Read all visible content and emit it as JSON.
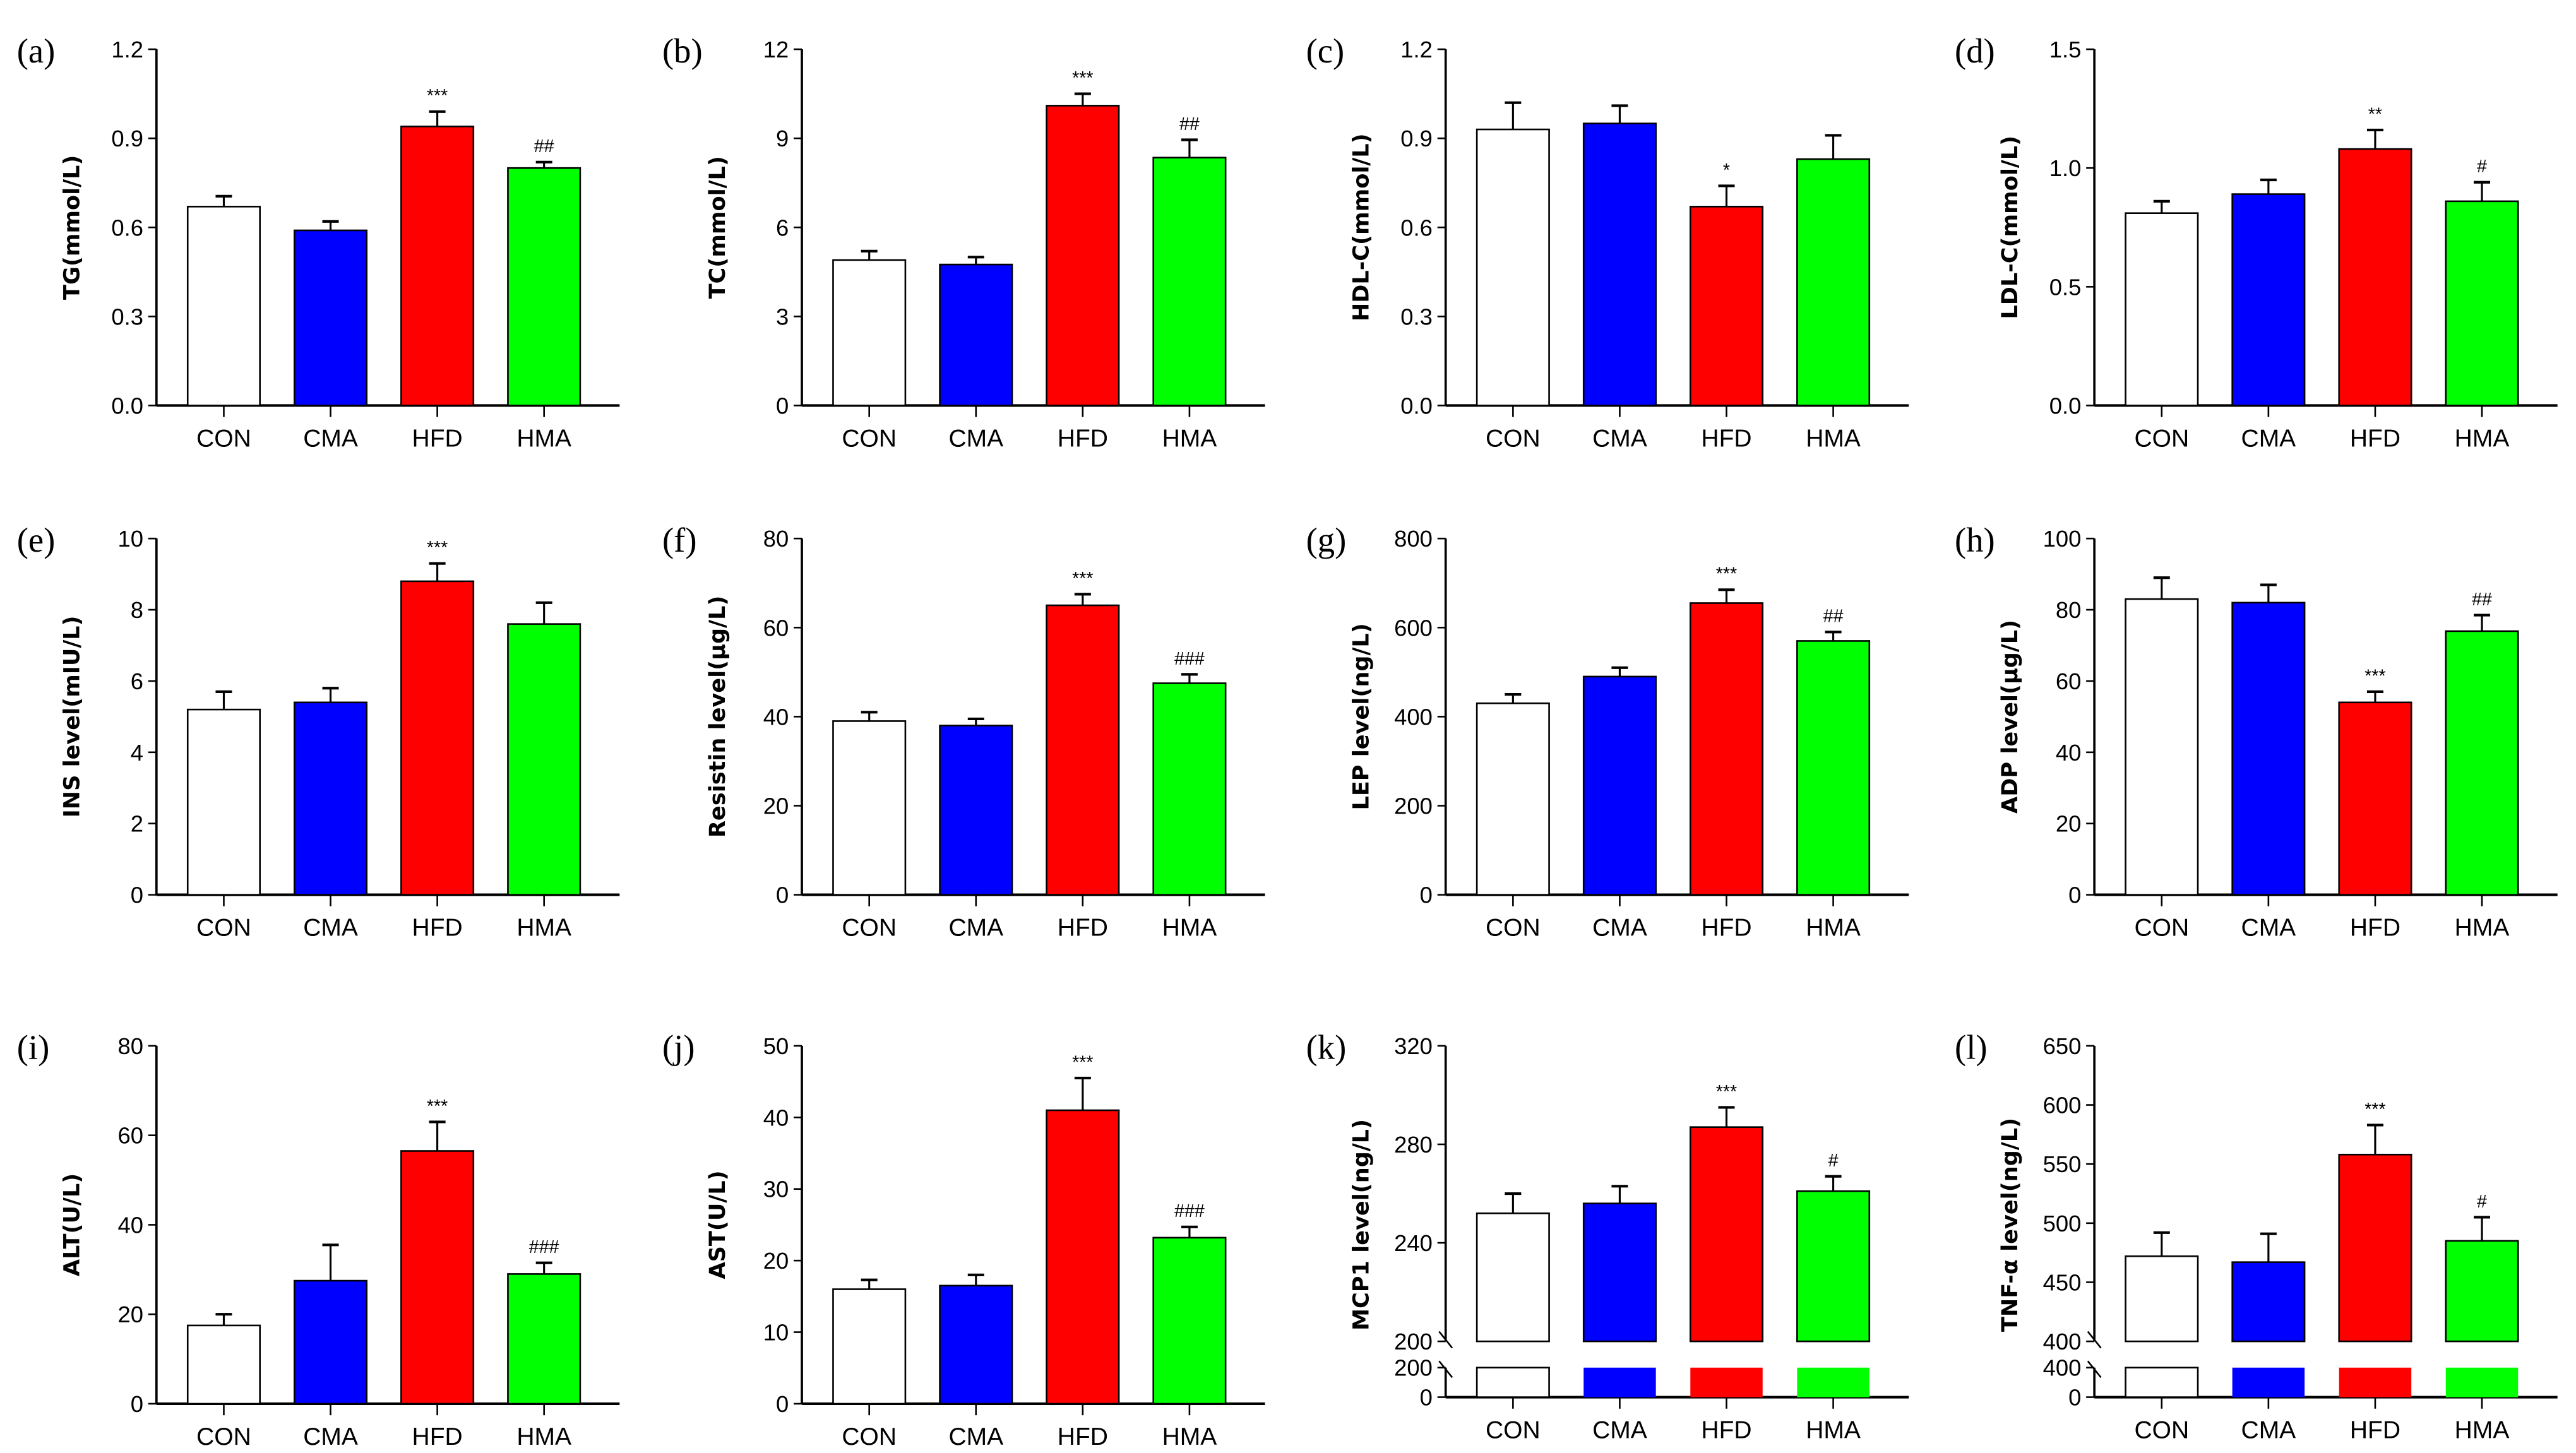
{
  "colors": {
    "CON": "#ffffff",
    "CMA": "#0000ff",
    "HFD": "#ff0000",
    "HMA": "#00ff00",
    "axis": "#000000"
  },
  "chart_data": [
    {
      "type": "bar",
      "panel": "(a)",
      "ylabel": "TG(mmol/L)",
      "categories": [
        "CON",
        "CMA",
        "HFD",
        "HMA"
      ],
      "values": [
        0.67,
        0.59,
        0.94,
        0.8
      ],
      "errors": [
        0.035,
        0.03,
        0.05,
        0.02
      ],
      "significance": [
        "",
        "",
        "***",
        "##"
      ],
      "ylim": [
        0,
        1.2
      ],
      "ticks": [
        "0.0",
        "0.3",
        "0.6",
        "0.9",
        "1.2"
      ]
    },
    {
      "type": "bar",
      "panel": "(b)",
      "ylabel": "TC(mmol/L)",
      "categories": [
        "CON",
        "CMA",
        "HFD",
        "HMA"
      ],
      "values": [
        4.9,
        4.75,
        10.1,
        8.35
      ],
      "errors": [
        0.3,
        0.25,
        0.4,
        0.6
      ],
      "significance": [
        "",
        "",
        "***",
        "##"
      ],
      "ylim": [
        0,
        12
      ],
      "ticks": [
        "0",
        "3",
        "6",
        "9",
        "12"
      ]
    },
    {
      "type": "bar",
      "panel": "(c)",
      "ylabel": "HDL-C(mmol/L)",
      "categories": [
        "CON",
        "CMA",
        "HFD",
        "HMA"
      ],
      "values": [
        0.93,
        0.95,
        0.67,
        0.83
      ],
      "errors": [
        0.09,
        0.06,
        0.07,
        0.08
      ],
      "significance": [
        "",
        "",
        "*",
        ""
      ],
      "ylim": [
        0,
        1.2
      ],
      "ticks": [
        "0.0",
        "0.3",
        "0.6",
        "0.9",
        "1.2"
      ]
    },
    {
      "type": "bar",
      "panel": "(d)",
      "ylabel": "LDL-C(mmol/L)",
      "categories": [
        "CON",
        "CMA",
        "HFD",
        "HMA"
      ],
      "values": [
        0.81,
        0.89,
        1.08,
        0.86
      ],
      "errors": [
        0.05,
        0.06,
        0.08,
        0.08
      ],
      "significance": [
        "",
        "",
        "**",
        "#"
      ],
      "ylim": [
        0,
        1.5
      ],
      "ticks": [
        "0.0",
        "0.5",
        "1.0",
        "1.5"
      ]
    },
    {
      "type": "bar",
      "panel": "(e)",
      "ylabel": "INS level(mIU/L)",
      "categories": [
        "CON",
        "CMA",
        "HFD",
        "HMA"
      ],
      "values": [
        5.2,
        5.4,
        8.8,
        7.6
      ],
      "errors": [
        0.5,
        0.4,
        0.5,
        0.6
      ],
      "significance": [
        "",
        "",
        "***",
        ""
      ],
      "ylim": [
        0,
        10
      ],
      "ticks": [
        "0",
        "2",
        "4",
        "6",
        "8",
        "10"
      ]
    },
    {
      "type": "bar",
      "panel": "(f)",
      "ylabel": "Resistin level(μg/L)",
      "categories": [
        "CON",
        "CMA",
        "HFD",
        "HMA"
      ],
      "values": [
        39,
        38,
        65,
        47.5
      ],
      "errors": [
        2,
        1.5,
        2.5,
        2
      ],
      "significance": [
        "",
        "",
        "***",
        "###"
      ],
      "ylim": [
        0,
        80
      ],
      "ticks": [
        "0",
        "20",
        "40",
        "60",
        "80"
      ]
    },
    {
      "type": "bar",
      "panel": "(g)",
      "ylabel": "LEP level(ng/L)",
      "categories": [
        "CON",
        "CMA",
        "HFD",
        "HMA"
      ],
      "values": [
        430,
        490,
        655,
        570
      ],
      "errors": [
        20,
        20,
        30,
        20
      ],
      "significance": [
        "",
        "",
        "***",
        "##"
      ],
      "ylim": [
        0,
        800
      ],
      "ticks": [
        "0",
        "200",
        "400",
        "600",
        "800"
      ]
    },
    {
      "type": "bar",
      "panel": "(h)",
      "ylabel": "ADP level(μg/L)",
      "categories": [
        "CON",
        "CMA",
        "HFD",
        "HMA"
      ],
      "values": [
        83,
        82,
        54,
        74
      ],
      "errors": [
        6,
        5,
        3,
        4.5
      ],
      "significance": [
        "",
        "",
        "***",
        "##"
      ],
      "ylim": [
        0,
        100
      ],
      "ticks": [
        "0",
        "20",
        "40",
        "60",
        "80",
        "100"
      ]
    },
    {
      "type": "bar",
      "panel": "(i)",
      "ylabel": "ALT(U/L)",
      "categories": [
        "CON",
        "CMA",
        "HFD",
        "HMA"
      ],
      "values": [
        17.5,
        27.5,
        56.5,
        29
      ],
      "errors": [
        2.5,
        8,
        6.5,
        2.5
      ],
      "significance": [
        "",
        "",
        "***",
        "###"
      ],
      "ylim": [
        0,
        80
      ],
      "ticks": [
        "0",
        "20",
        "40",
        "60",
        "80"
      ]
    },
    {
      "type": "bar",
      "panel": "(j)",
      "ylabel": "AST(U/L)",
      "categories": [
        "CON",
        "CMA",
        "HFD",
        "HMA"
      ],
      "values": [
        16,
        16.5,
        41,
        23.2
      ],
      "errors": [
        1.3,
        1.5,
        4.5,
        1.5
      ],
      "significance": [
        "",
        "",
        "***",
        "###"
      ],
      "ylim": [
        0,
        50
      ],
      "ticks": [
        "0",
        "10",
        "20",
        "30",
        "40",
        "50"
      ]
    },
    {
      "type": "bar",
      "panel": "(k)",
      "ylabel": "MCP1 level(ng/L)",
      "categories": [
        "CON",
        "CMA",
        "HFD",
        "HMA"
      ],
      "values": [
        252,
        256,
        287,
        261
      ],
      "errors": [
        8,
        7,
        8,
        6
      ],
      "significance": [
        "",
        "",
        "***",
        "#"
      ],
      "ylim": [
        200,
        320
      ],
      "ticks": [
        "200",
        "240",
        "280",
        "320"
      ],
      "broken_axis": {
        "lower_ylim": [
          0,
          200
        ],
        "lower_ticks": [
          "0",
          "200"
        ]
      }
    },
    {
      "type": "bar",
      "panel": "(l)",
      "ylabel": "TNF-α level(ng/L)",
      "categories": [
        "CON",
        "CMA",
        "HFD",
        "HMA"
      ],
      "values": [
        472,
        467,
        558,
        485
      ],
      "errors": [
        20,
        24,
        25,
        20
      ],
      "significance": [
        "",
        "",
        "***",
        "#"
      ],
      "ylim": [
        400,
        650
      ],
      "ticks": [
        "400",
        "450",
        "500",
        "550",
        "600",
        "650"
      ],
      "broken_axis": {
        "lower_ylim": [
          0,
          400
        ],
        "lower_ticks": [
          "0",
          "400"
        ]
      }
    }
  ]
}
